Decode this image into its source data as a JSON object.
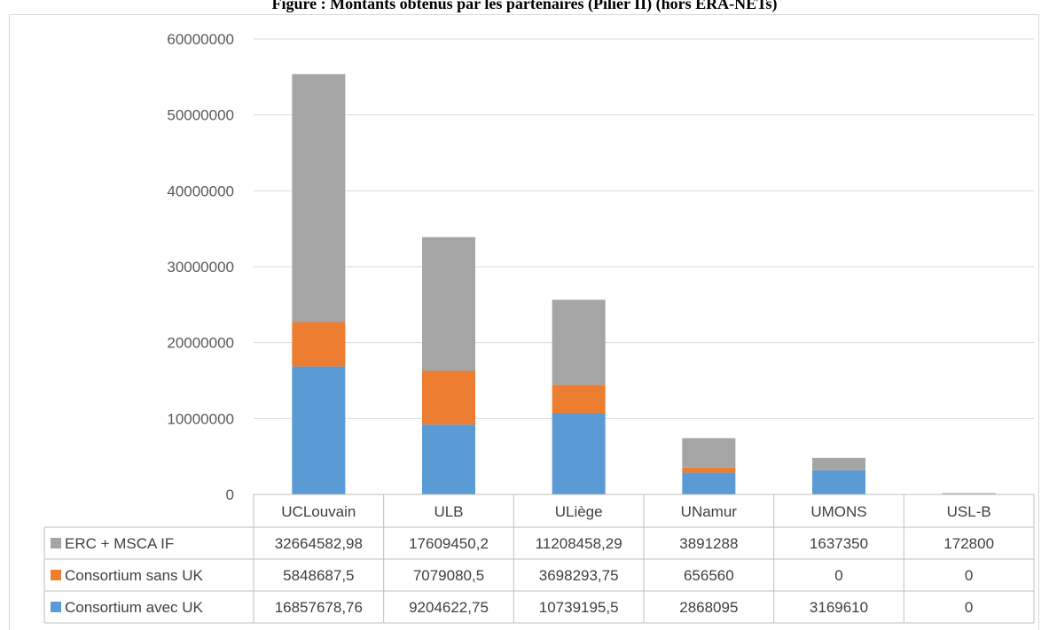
{
  "title": "Figure : Montants obtenus par les partenaires (Pilier II) (hors ERA-NETs)",
  "chart_data": {
    "type": "bar",
    "stacked": true,
    "categories": [
      "UCLouvain",
      "ULB",
      "ULiège",
      "UNamur",
      "UMONS",
      "USL-B"
    ],
    "series": [
      {
        "name": "Consortium avec UK",
        "color": "#5b9bd5",
        "values": [
          16857678.76,
          9204622.75,
          10739195.5,
          2868095,
          3169610,
          0
        ],
        "labels": [
          "16857678,76",
          "9204622,75",
          "10739195,5",
          "2868095",
          "3169610",
          "0"
        ]
      },
      {
        "name": "Consortium sans UK",
        "color": "#ed7d31",
        "values": [
          5848687.5,
          7079080.5,
          3698293.75,
          656560,
          0,
          0
        ],
        "labels": [
          "5848687,5",
          "7079080,5",
          "3698293,75",
          "656560",
          "0",
          "0"
        ]
      },
      {
        "name": "ERC + MSCA IF",
        "color": "#a5a5a5",
        "values": [
          32664582.98,
          17609450.2,
          11208458.29,
          3891288,
          1637350,
          172800
        ],
        "labels": [
          "32664582,98",
          "17609450,2",
          "11208458,29",
          "3891288",
          "1637350",
          "172800"
        ]
      }
    ],
    "table_row_order": [
      "ERC + MSCA IF",
      "Consortium sans UK",
      "Consortium avec UK"
    ],
    "ylim": [
      0,
      60000000
    ],
    "yticks": [
      "0",
      "10000000",
      "20000000",
      "30000000",
      "40000000",
      "50000000",
      "60000000"
    ],
    "grid": true,
    "legend": "data-table"
  }
}
